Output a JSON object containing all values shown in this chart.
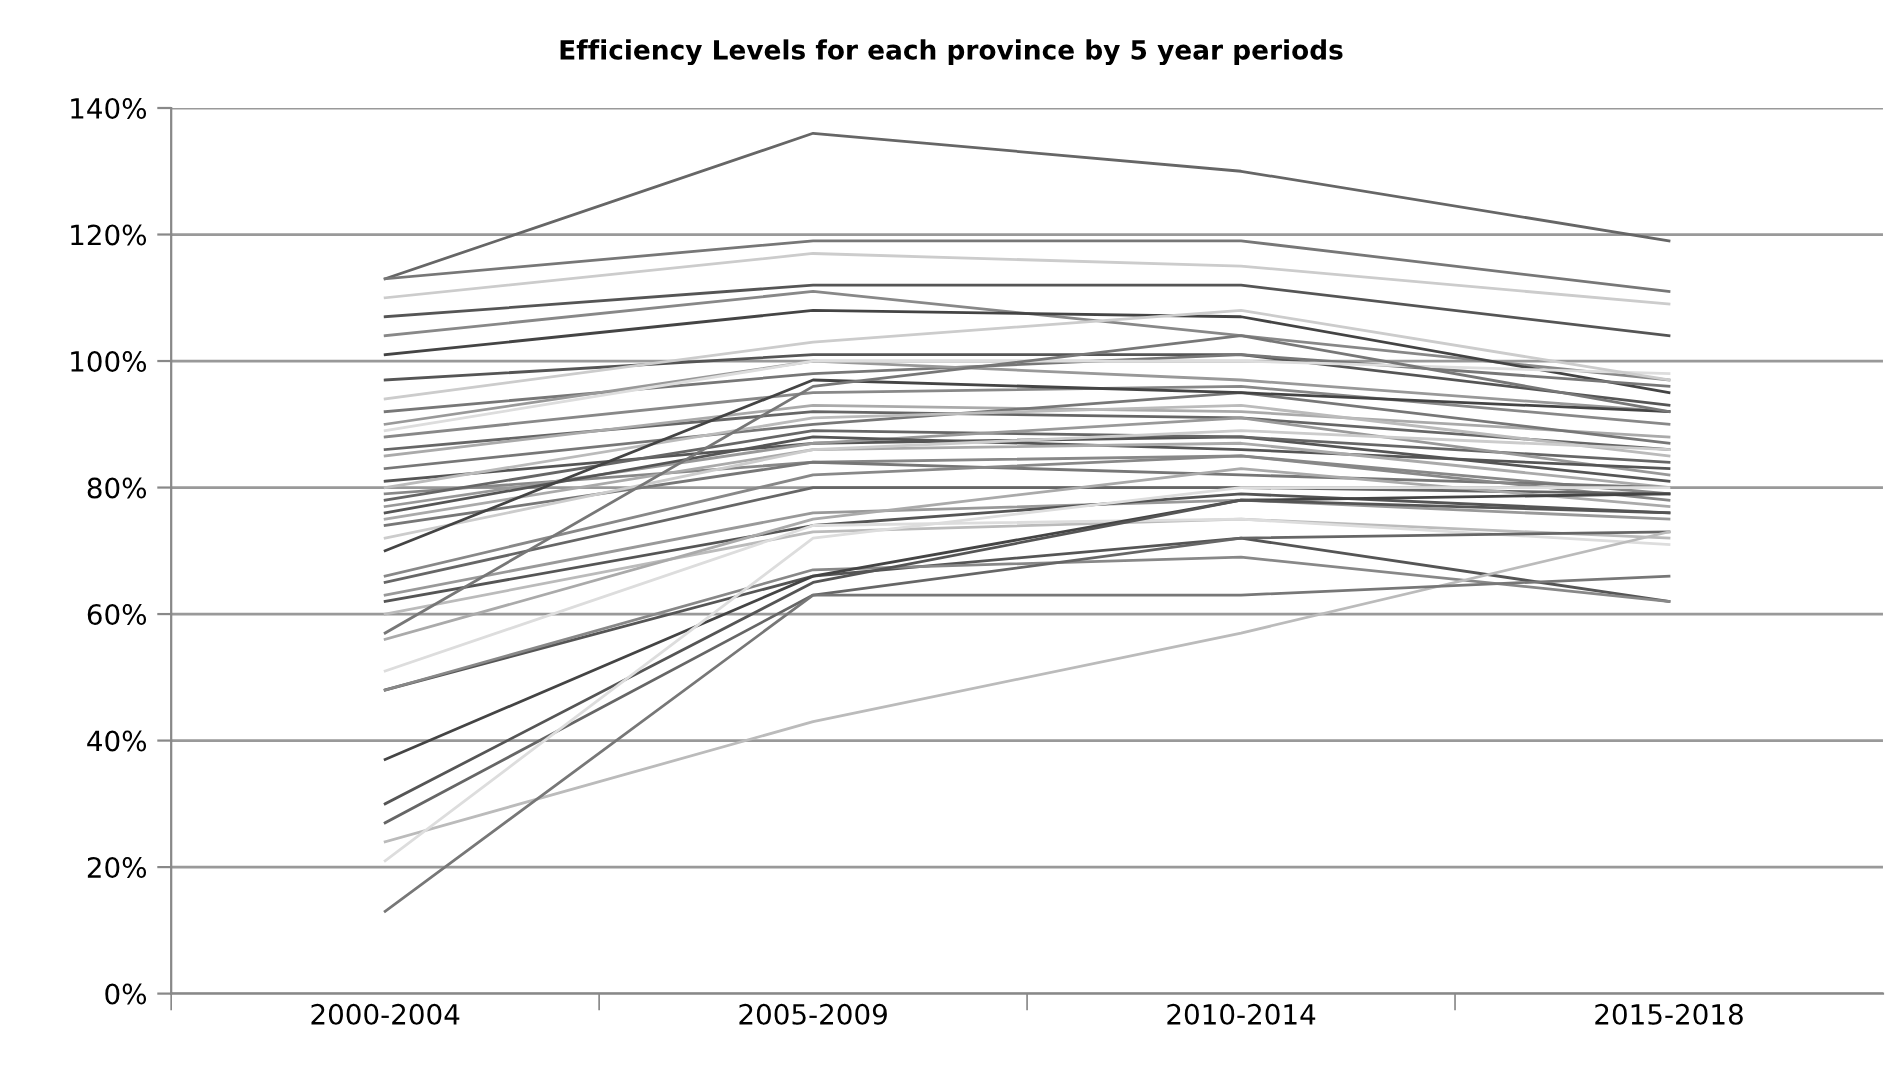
{
  "chart_data": {
    "type": "line",
    "title": "Efficiency Levels for each province by 5 year periods",
    "categories": [
      "2000-2004",
      "2005-2009",
      "2010-2014",
      "2015-2018"
    ],
    "ylim": [
      0,
      140
    ],
    "yticks": [
      {
        "value": 0,
        "label": "0%"
      },
      {
        "value": 20,
        "label": "20%"
      },
      {
        "value": 40,
        "label": "40%"
      },
      {
        "value": 60,
        "label": "60%"
      },
      {
        "value": 80,
        "label": "80%"
      },
      {
        "value": 100,
        "label": "100%"
      },
      {
        "value": 120,
        "label": "120%"
      },
      {
        "value": 140,
        "label": "140%"
      }
    ],
    "grid": "y",
    "legend": false,
    "marker": "none",
    "line_style": "solid",
    "series": [
      {
        "color": "#666666",
        "values": [
          113,
          136,
          130,
          119
        ]
      },
      {
        "color": "#777777",
        "values": [
          113,
          119,
          119,
          111
        ]
      },
      {
        "color": "#cccccc",
        "values": [
          110,
          117,
          115,
          109
        ]
      },
      {
        "color": "#555555",
        "values": [
          107,
          112,
          112,
          104
        ]
      },
      {
        "color": "#888888",
        "values": [
          104,
          111,
          104,
          97
        ]
      },
      {
        "color": "#444444",
        "values": [
          101,
          108,
          107,
          95
        ]
      },
      {
        "color": "#555555",
        "values": [
          97,
          101,
          101,
          93
        ]
      },
      {
        "color": "#777777",
        "values": [
          92,
          98,
          101,
          96
        ]
      },
      {
        "color": "#999999",
        "values": [
          90,
          100,
          97,
          92
        ]
      },
      {
        "color": "#dddddd",
        "values": [
          89,
          100,
          100,
          98
        ]
      },
      {
        "color": "#cccccc",
        "values": [
          94,
          103,
          108,
          97
        ]
      },
      {
        "color": "#888888",
        "values": [
          88,
          95,
          96,
          90
        ]
      },
      {
        "color": "#666666",
        "values": [
          86,
          92,
          91,
          86
        ]
      },
      {
        "color": "#aaaaaa",
        "values": [
          85,
          93,
          92,
          88
        ]
      },
      {
        "color": "#777777",
        "values": [
          83,
          90,
          95,
          87
        ]
      },
      {
        "color": "#555555",
        "values": [
          81,
          87,
          88,
          81
        ]
      },
      {
        "color": "#bbbbbb",
        "values": [
          80,
          91,
          93,
          85
        ]
      },
      {
        "color": "#888888",
        "values": [
          79,
          84,
          85,
          79
        ]
      },
      {
        "color": "#666666",
        "values": [
          78,
          89,
          88,
          84
        ]
      },
      {
        "color": "#999999",
        "values": [
          77,
          87,
          91,
          82
        ]
      },
      {
        "color": "#555555",
        "values": [
          76,
          88,
          86,
          83
        ]
      },
      {
        "color": "#aaaaaa",
        "values": [
          75,
          86,
          87,
          80
        ]
      },
      {
        "color": "#777777",
        "values": [
          74,
          84,
          82,
          80
        ]
      },
      {
        "color": "#cccccc",
        "values": [
          72,
          86,
          89,
          86
        ]
      },
      {
        "color": "#444444",
        "values": [
          70,
          97,
          95,
          92
        ]
      },
      {
        "color": "#888888",
        "values": [
          66,
          82,
          85,
          78
        ]
      },
      {
        "color": "#666666",
        "values": [
          65,
          80,
          80,
          79
        ]
      },
      {
        "color": "#999999",
        "values": [
          63,
          76,
          78,
          75
        ]
      },
      {
        "color": "#555555",
        "values": [
          62,
          74,
          79,
          76
        ]
      },
      {
        "color": "#bbbbbb",
        "values": [
          60,
          73,
          75,
          72
        ]
      },
      {
        "color": "#777777",
        "values": [
          57,
          96,
          104,
          92
        ]
      },
      {
        "color": "#aaaaaa",
        "values": [
          56,
          75,
          83,
          77
        ]
      },
      {
        "color": "#dddddd",
        "values": [
          51,
          74,
          75,
          71
        ]
      },
      {
        "color": "#555555",
        "values": [
          48,
          66,
          72,
          62
        ]
      },
      {
        "color": "#888888",
        "values": [
          48,
          67,
          69,
          62
        ]
      },
      {
        "color": "#444444",
        "values": [
          37,
          66,
          78,
          79
        ]
      },
      {
        "color": "#555555",
        "values": [
          30,
          65,
          78,
          76
        ]
      },
      {
        "color": "#666666",
        "values": [
          27,
          63,
          72,
          73
        ]
      },
      {
        "color": "#bbbbbb",
        "values": [
          24,
          43,
          57,
          73
        ]
      },
      {
        "color": "#dddddd",
        "values": [
          21,
          72,
          80,
          80
        ]
      },
      {
        "color": "#777777",
        "values": [
          13,
          63,
          63,
          66
        ]
      }
    ]
  }
}
